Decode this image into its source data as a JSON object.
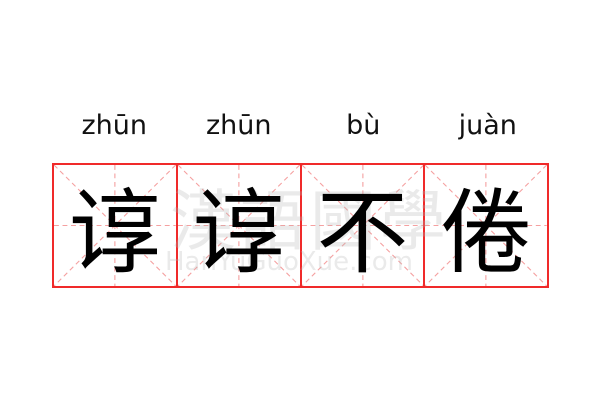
{
  "pinyin": [
    "zhūn",
    "zhūn",
    "bù",
    "juàn"
  ],
  "characters": [
    "谆",
    "谆",
    "不",
    "倦"
  ],
  "watermark": {
    "chinese": "漢語國學",
    "latin": "HanYuGuoXue.com"
  },
  "colors": {
    "grid_border": "#f02a2a",
    "guide_lines": "#f5a0a0",
    "text": "#000000"
  }
}
